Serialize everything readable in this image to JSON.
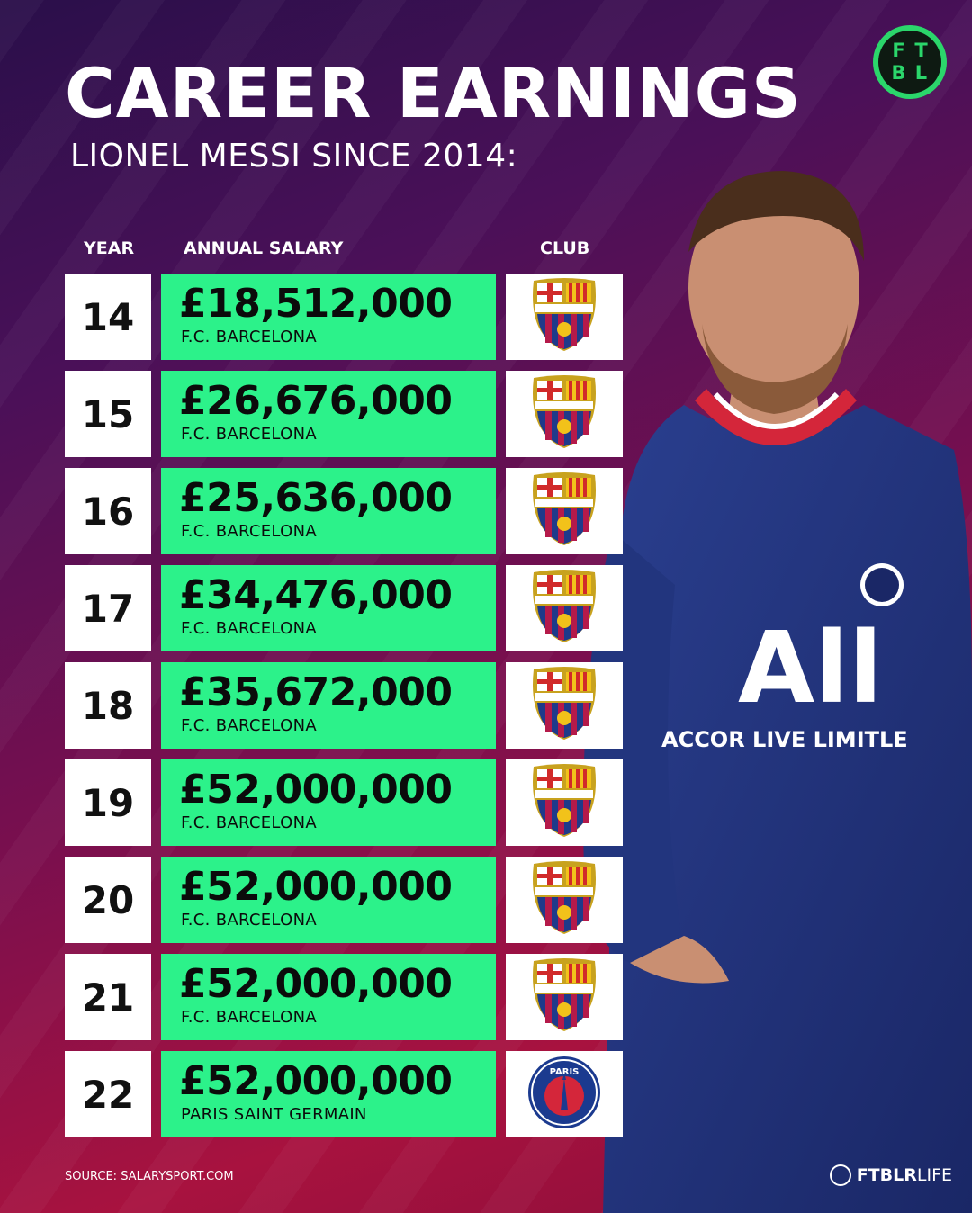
{
  "header": {
    "title": "CAREER EARNINGS",
    "subtitle": "LIONEL MESSI SINCE 2014:",
    "logo_letters": [
      "F",
      "T",
      "B",
      "L"
    ]
  },
  "columns": {
    "year": "YEAR",
    "salary": "ANNUAL SALARY",
    "club": "CLUB"
  },
  "colors": {
    "salary_bg": "#2cf28a",
    "cell_bg": "#ffffff",
    "logo_green": "#2bd66b"
  },
  "chart_data": {
    "type": "table",
    "columns": [
      "YEAR",
      "ANNUAL SALARY",
      "CLUB"
    ],
    "rows": [
      {
        "year": "14",
        "salary": "£18,512,000",
        "club": "F.C. BARCELONA",
        "crest": "fcb-crest-icon"
      },
      {
        "year": "15",
        "salary": "£26,676,000",
        "club": "F.C. BARCELONA",
        "crest": "fcb-crest-icon"
      },
      {
        "year": "16",
        "salary": "£25,636,000",
        "club": "F.C. BARCELONA",
        "crest": "fcb-crest-icon"
      },
      {
        "year": "17",
        "salary": "£34,476,000",
        "club": "F.C. BARCELONA",
        "crest": "fcb-crest-icon"
      },
      {
        "year": "18",
        "salary": "£35,672,000",
        "club": "F.C. BARCELONA",
        "crest": "fcb-crest-icon"
      },
      {
        "year": "19",
        "salary": "£52,000,000",
        "club": "F.C. BARCELONA",
        "crest": "fcb-crest-icon"
      },
      {
        "year": "20",
        "salary": "£52,000,000",
        "club": "F.C. BARCELONA",
        "crest": "fcb-crest-icon"
      },
      {
        "year": "21",
        "salary": "£52,000,000",
        "club": "F.C. BARCELONA",
        "crest": "fcb-crest-icon"
      },
      {
        "year": "22",
        "salary": "£52,000,000",
        "club": "PARIS SAINT GERMAIN",
        "crest": "psg-crest-icon"
      }
    ]
  },
  "footer": {
    "source": "SOURCE: SALARYSPORT.COM",
    "brand_bold": "FTBLR",
    "brand_light": "LIFE"
  }
}
